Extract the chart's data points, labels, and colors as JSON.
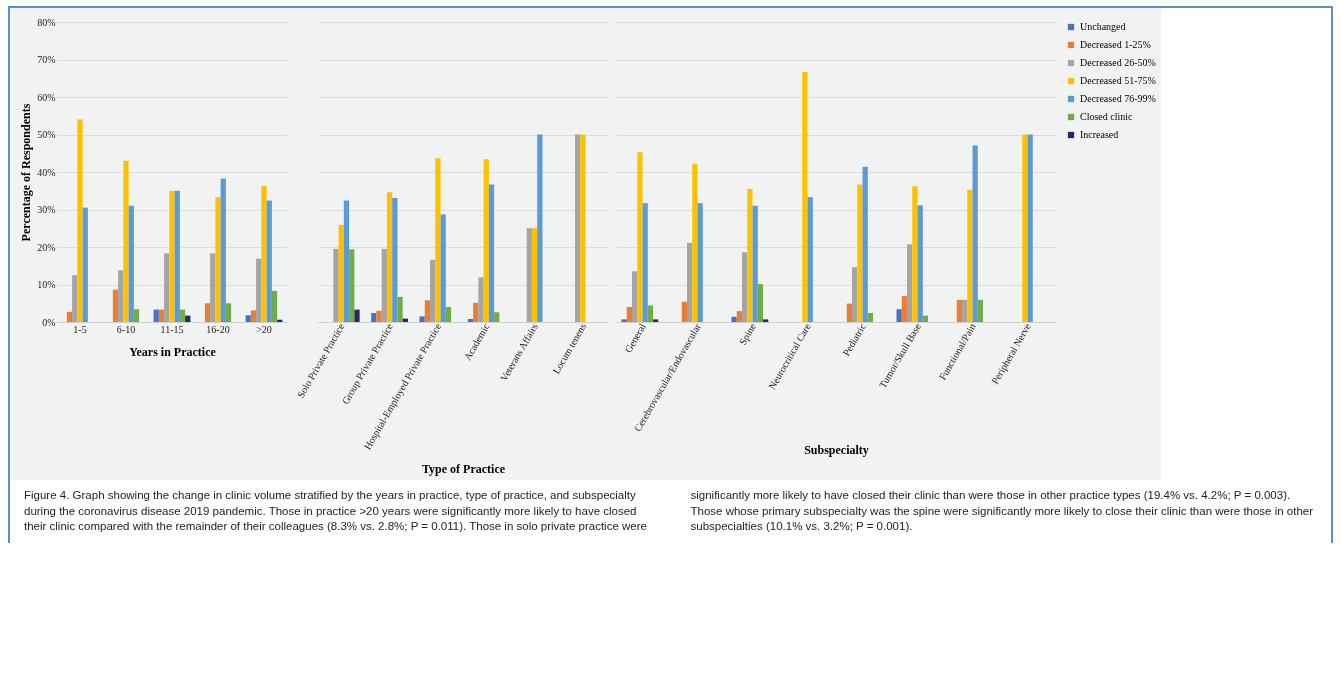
{
  "chart_data": [
    {
      "type": "bar",
      "xlabel": "Years in Practice",
      "ylabel": "Percentage of Respondents",
      "categories": [
        "1-5",
        "6-10",
        "11-15",
        "16-20",
        ">20"
      ],
      "ylim": [
        0,
        80
      ],
      "yticks": [
        {
          "value": 0,
          "label": "0%"
        },
        {
          "value": 10,
          "label": "10%"
        },
        {
          "value": 20,
          "label": "20%"
        },
        {
          "value": 30,
          "label": "30%"
        },
        {
          "value": 40,
          "label": "40%"
        },
        {
          "value": 50,
          "label": "50%"
        },
        {
          "value": 60,
          "label": "60%"
        },
        {
          "value": 70,
          "label": "70%"
        },
        {
          "value": 80,
          "label": "80%"
        }
      ],
      "grid": "y",
      "legend": "right",
      "series": [
        {
          "name": "Unchanged",
          "color": "#4472c4",
          "values": [
            null,
            null,
            3.3,
            null,
            1.8
          ]
        },
        {
          "name": "Decreased 1-25%",
          "color": "#ed7d31",
          "values": [
            2.7,
            8.6,
            3.3,
            5,
            3.1
          ]
        },
        {
          "name": "Decreased 26-50%",
          "color": "#a5a5a5",
          "values": [
            12.5,
            13.8,
            18.3,
            18.3,
            16.9
          ]
        },
        {
          "name": "Decreased 51-75%",
          "color": "#ffc000",
          "values": [
            54,
            43,
            35,
            33.3,
            36.3
          ]
        },
        {
          "name": "Decreased 76-99%",
          "color": "#5b9bd5",
          "values": [
            30.5,
            31,
            35,
            38.3,
            32.4
          ]
        },
        {
          "name": "Closed clinic",
          "color": "#70ad47",
          "values": [
            null,
            3.4,
            3.3,
            5,
            8.3
          ]
        },
        {
          "name": "Increased",
          "color": "#1f2a6b",
          "values": [
            null,
            null,
            1.7,
            null,
            0.6
          ]
        }
      ],
      "annotations": [
        "Figure 4. Graph showing the change in clinic volume stratified by the years in practice, type of practice, and subspecialty during the coronavirus disease 2019 pandemic. Those in practice >20 years were significantly more likely to have closed their clinic compared with the remainder of their colleagues (8.3% vs. 2.8%; P = 0.011). Those in solo private practice were significantly more likely to have closed their clinic than were those in other practice types (19.4% vs. 4.2%; P = 0.003). Those whose primary subspecialty was the spine were significantly more likely to close their clinic than were those in other subspecialties (10.1% vs. 3.2%; P = 0.001)."
      ]
    },
    {
      "type": "bar",
      "xlabel": "Type of Practice",
      "categories": [
        "Solo Private Practice",
        "Group Private Practice",
        "Hospital-Employed Private Practice",
        "Academic",
        "Veterans Affairs",
        "Locum tenens"
      ],
      "ylim": [
        0,
        80
      ],
      "yticks": [
        0,
        10,
        20,
        30,
        40,
        50,
        60,
        70,
        80
      ],
      "grid": "y",
      "legend": "right",
      "tick_labels": "x",
      "series": [
        {
          "name": "Unchanged",
          "color": "#4472c4",
          "values": [
            null,
            2.4,
            1.5,
            0.8,
            null,
            null
          ]
        },
        {
          "name": "Decreased 1-25%",
          "color": "#ed7d31",
          "values": [
            null,
            3,
            5.8,
            5.1,
            null,
            null
          ]
        },
        {
          "name": "Decreased 26-50%",
          "color": "#a5a5a5",
          "values": [
            19.5,
            19.5,
            16.6,
            11.9,
            25,
            50
          ]
        },
        {
          "name": "Decreased 51-75%",
          "color": "#ffc000",
          "values": [
            25.9,
            34.6,
            43.7,
            43.4,
            25,
            50
          ]
        },
        {
          "name": "Decreased 76-99%",
          "color": "#5b9bd5",
          "values": [
            32.4,
            33.1,
            28.7,
            36.7,
            50,
            null
          ]
        },
        {
          "name": "Closed clinic",
          "color": "#70ad47",
          "values": [
            19.4,
            6.7,
            4,
            2.6,
            null,
            null
          ]
        },
        {
          "name": "Increased",
          "color": "#1f2a6b",
          "values": [
            3.3,
            0.9,
            null,
            null,
            null,
            null
          ]
        }
      ]
    },
    {
      "type": "bar",
      "xlabel": "Subspecialty",
      "categories": [
        "General",
        "Cerebrovascular/Endovascular",
        "Spine",
        "Neurocritical Care",
        "Pediatric",
        "Tumor/Skull Base",
        "Functional/Pain",
        "Peripheral Nerve"
      ],
      "ylim": [
        0,
        80
      ],
      "yticks": [
        0,
        10,
        20,
        30,
        40,
        50,
        60,
        70,
        80
      ],
      "grid": "y",
      "legend": "right",
      "tick_labels": "x",
      "series": [
        {
          "name": "Unchanged",
          "color": "#4472c4",
          "values": [
            0.7,
            null,
            1.4,
            null,
            null,
            3.4,
            null,
            null
          ]
        },
        {
          "name": "Decreased 1-25%",
          "color": "#ed7d31",
          "values": [
            4,
            5.4,
            2.9,
            null,
            4.9,
            6.9,
            5.9,
            null
          ]
        },
        {
          "name": "Decreased 26-50%",
          "color": "#a5a5a5",
          "values": [
            13.5,
            21.1,
            18.6,
            null,
            14.6,
            20.7,
            5.9,
            null
          ]
        },
        {
          "name": "Decreased 51-75%",
          "color": "#ffc000",
          "values": [
            45.3,
            42.2,
            35.5,
            66.7,
            36.7,
            36.2,
            35.3,
            50
          ]
        },
        {
          "name": "Decreased 76-99%",
          "color": "#5b9bd5",
          "values": [
            31.7,
            31.7,
            31,
            33.3,
            41.4,
            31.1,
            47.1,
            50
          ]
        },
        {
          "name": "Closed clinic",
          "color": "#70ad47",
          "values": [
            4.4,
            null,
            10.1,
            null,
            2.4,
            1.7,
            5.9,
            null
          ]
        },
        {
          "name": "Increased",
          "color": "#1f2a6b",
          "values": [
            0.7,
            null,
            0.7,
            null,
            null,
            null,
            null,
            null
          ]
        }
      ]
    }
  ]
}
